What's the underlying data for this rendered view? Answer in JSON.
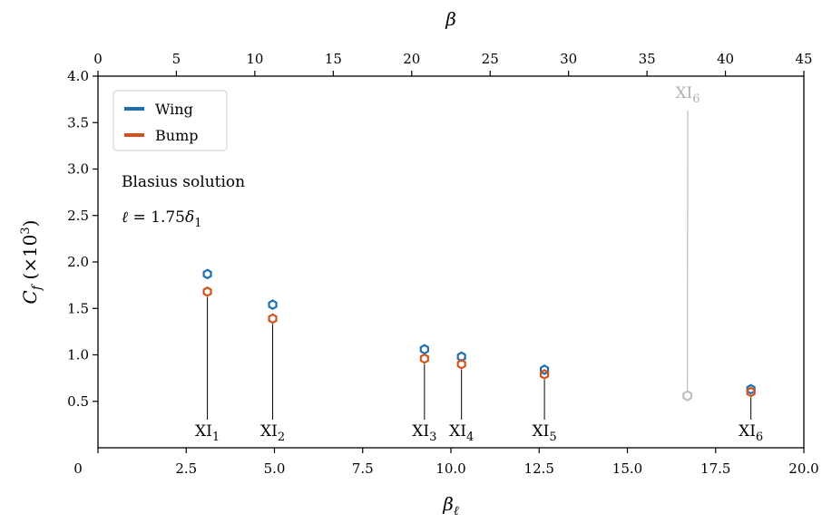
{
  "chart_data": {
    "type": "scatter",
    "xlabel": "β_ℓ",
    "ylabel": "C_f (×10³)",
    "top_xlabel": "β",
    "xlim": [
      0,
      20
    ],
    "ylim": [
      0,
      4.0
    ],
    "top_xlim": [
      0,
      45
    ],
    "x_ticks": [
      "0",
      "2.5",
      "5.0",
      "7.5",
      "10.0",
      "12.5",
      "15.0",
      "17.5",
      "20.0"
    ],
    "y_ticks": [
      "0.5",
      "1.0",
      "1.5",
      "2.0",
      "2.5",
      "3.0",
      "3.5",
      "4.0"
    ],
    "top_x_ticks": [
      "0",
      "5",
      "10",
      "15",
      "20",
      "25",
      "30",
      "35",
      "40",
      "45"
    ],
    "grid": false,
    "legend_position": "top-left",
    "series": [
      {
        "name": "Wing",
        "color": "#1f6fb4",
        "marker": "hexagon-open",
        "points": [
          {
            "x": 3.1,
            "y": 1.87
          },
          {
            "x": 4.95,
            "y": 1.54
          },
          {
            "x": 9.25,
            "y": 1.06
          },
          {
            "x": 10.3,
            "y": 0.98
          },
          {
            "x": 12.65,
            "y": 0.84
          },
          {
            "x": 18.5,
            "y": 0.63
          }
        ]
      },
      {
        "name": "Bump",
        "color": "#d2521e",
        "marker": "hexagon-open",
        "points": [
          {
            "x": 3.1,
            "y": 1.68
          },
          {
            "x": 4.95,
            "y": 1.39
          },
          {
            "x": 9.25,
            "y": 0.96
          },
          {
            "x": 10.3,
            "y": 0.9
          },
          {
            "x": 12.65,
            "y": 0.79
          },
          {
            "x": 18.5,
            "y": 0.6
          }
        ]
      }
    ],
    "faded_point": {
      "x": 16.7,
      "y": 0.56,
      "color": "#c0c0c0"
    },
    "annotations": [
      {
        "base": "XI",
        "sub": "1",
        "x": 3.1
      },
      {
        "base": "XI",
        "sub": "2",
        "x": 4.95
      },
      {
        "base": "XI",
        "sub": "3",
        "x": 9.25
      },
      {
        "base": "XI",
        "sub": "4",
        "x": 10.3
      },
      {
        "base": "XI",
        "sub": "5",
        "x": 12.65
      },
      {
        "base": "XI",
        "sub": "6",
        "x": 18.5
      }
    ],
    "faded_annotation": {
      "base": "XI",
      "sub": "6"
    },
    "text_blasius": "Blasius solution",
    "text_ell": "ℓ = 1.75δ₁"
  }
}
